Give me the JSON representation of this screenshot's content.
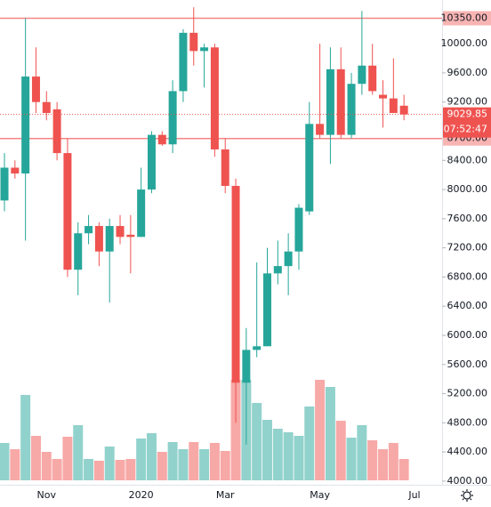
{
  "chart_data": {
    "type": "candlestick",
    "categories": [
      null,
      null,
      null,
      null,
      "Nov",
      null,
      null,
      null,
      null,
      null,
      null,
      null,
      null,
      "2020",
      null,
      null,
      null,
      null,
      null,
      null,
      null,
      "Mar",
      null,
      null,
      null,
      null,
      null,
      null,
      null,
      null,
      "May",
      null,
      null,
      null,
      null,
      null,
      null,
      null,
      null,
      "Jul"
    ],
    "open": [
      7850,
      8300,
      8220,
      9550,
      9200,
      9100,
      8500,
      6900,
      7400,
      7500,
      7150,
      7500,
      7380,
      7350,
      8000,
      8750,
      8620,
      9350,
      10150,
      9900,
      9950,
      8550,
      8050,
      5350,
      5800,
      5850,
      6850,
      6950,
      7150,
      7700,
      8900,
      8750,
      9650,
      8750,
      9450,
      9700,
      9300,
      9250,
      9150,
      null
    ],
    "high": [
      8500,
      8400,
      10350,
      9950,
      9350,
      9200,
      8700,
      7550,
      7650,
      7550,
      7600,
      7650,
      7650,
      8300,
      8800,
      8800,
      9500,
      10200,
      10500,
      10000,
      10000,
      8700,
      8150,
      6100,
      7000,
      7200,
      7300,
      7400,
      7800,
      9200,
      10000,
      9950,
      9950,
      9600,
      10450,
      10000,
      9500,
      9800,
      9300,
      null
    ],
    "low": [
      7700,
      8150,
      7300,
      9050,
      8950,
      8400,
      6800,
      6550,
      7250,
      6950,
      6450,
      7250,
      6850,
      7350,
      7950,
      8600,
      8500,
      9200,
      9700,
      9400,
      8450,
      7950,
      4800,
      4500,
      5700,
      5850,
      6700,
      6550,
      6900,
      7650,
      8700,
      8350,
      8700,
      8700,
      9300,
      9300,
      8850,
      9100,
      8950,
      null
    ],
    "close": [
      8300,
      8220,
      9550,
      9200,
      9050,
      8500,
      6900,
      7400,
      7500,
      7150,
      7500,
      7350,
      7350,
      8000,
      8750,
      8620,
      9350,
      10150,
      9900,
      9950,
      8550,
      8050,
      5350,
      5800,
      5850,
      6850,
      6950,
      7150,
      7750,
      8900,
      8750,
      9650,
      8750,
      9450,
      9700,
      9350,
      9250,
      9050,
      9030,
      null
    ],
    "volume": [
      42,
      35,
      96,
      50,
      32,
      24,
      49,
      62,
      24,
      22,
      38,
      23,
      24,
      47,
      53,
      32,
      43,
      35,
      43,
      35,
      42,
      33,
      113,
      113,
      87,
      68,
      58,
      54,
      50,
      83,
      113,
      105,
      67,
      48,
      62,
      45,
      35,
      42,
      24,
      null
    ],
    "volume_lim": [
      0,
      135
    ],
    "up_color": "#26a69a",
    "down_color": "#ef5350",
    "ylim": [
      3950,
      10600
    ],
    "yticks": [
      {
        "value": 4000,
        "label": "4000.00"
      },
      {
        "value": 4400,
        "label": "4400.00"
      },
      {
        "value": 4800,
        "label": "4800.00"
      },
      {
        "value": 5200,
        "label": "5200.00"
      },
      {
        "value": 5600,
        "label": "5600.00"
      },
      {
        "value": 6000,
        "label": "6000.00"
      },
      {
        "value": 6400,
        "label": "6400.00"
      },
      {
        "value": 6800,
        "label": "6800.00"
      },
      {
        "value": 7200,
        "label": "7200.00"
      },
      {
        "value": 7600,
        "label": "7600.00"
      },
      {
        "value": 8000,
        "label": "8000.00"
      },
      {
        "value": 8400,
        "label": "8400.00"
      },
      {
        "value": 9200,
        "label": "9200.00"
      },
      {
        "value": 9600,
        "label": "9600.00"
      },
      {
        "value": 10000,
        "label": "10000.00"
      }
    ],
    "levels": [
      {
        "value": 10350,
        "label": "10350.00"
      },
      {
        "value": 8700,
        "label": "8700.00"
      }
    ],
    "last_price": {
      "value": 9029.85,
      "label": "9029.85"
    },
    "countdown": "07:52:47"
  }
}
